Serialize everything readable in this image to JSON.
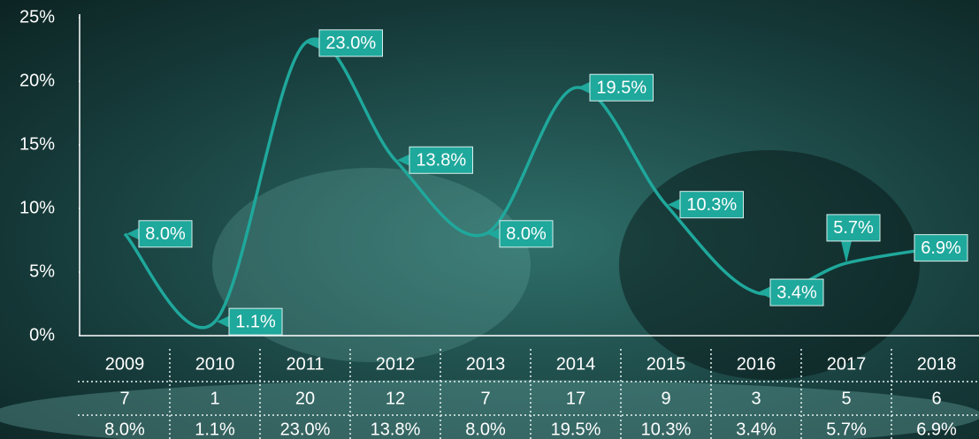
{
  "chart_data": {
    "type": "line",
    "categories": [
      "2009",
      "2010",
      "2011",
      "2012",
      "2013",
      "2014",
      "2015",
      "2016",
      "2017",
      "2018"
    ],
    "values": [
      8.0,
      1.1,
      23.0,
      13.8,
      8.0,
      19.5,
      10.3,
      3.4,
      5.7,
      6.9
    ],
    "value_labels": [
      "8.0%",
      "1.1%",
      "23.0%",
      "13.8%",
      "8.0%",
      "19.5%",
      "10.3%",
      "3.4%",
      "5.7%",
      "6.9%"
    ],
    "counts": [
      7,
      1,
      20,
      12,
      7,
      17,
      9,
      3,
      5,
      6
    ],
    "color": "#1fa89c",
    "ylim": [
      0,
      25
    ],
    "yticks": [
      {
        "value": 0,
        "label": "0%"
      },
      {
        "value": 5,
        "label": "5%"
      },
      {
        "value": 10,
        "label": "10%"
      },
      {
        "value": 15,
        "label": "15%"
      },
      {
        "value": 20,
        "label": "20%"
      },
      {
        "value": 25,
        "label": "25%"
      }
    ],
    "grid": false
  }
}
